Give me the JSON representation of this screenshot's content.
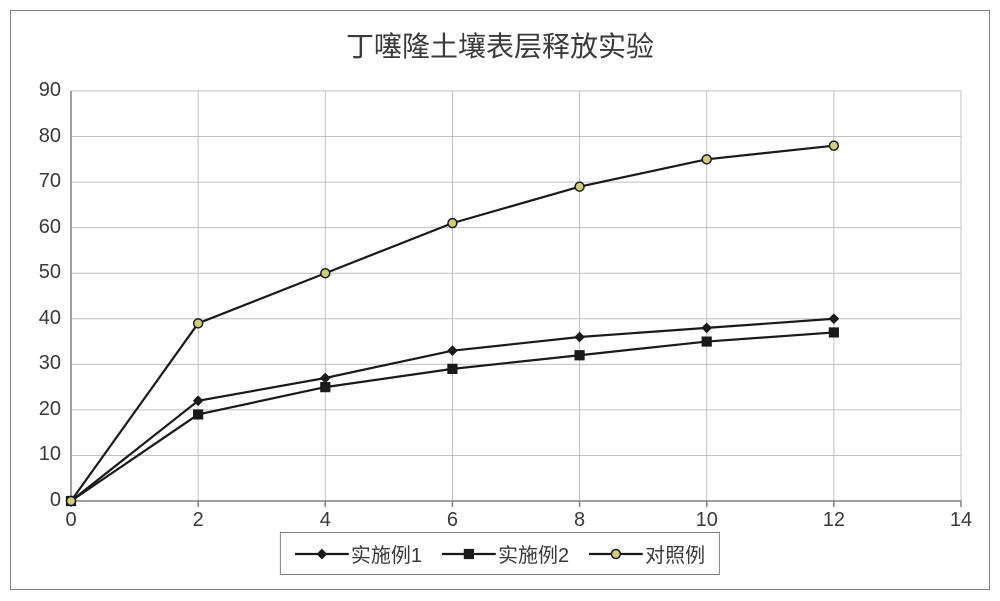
{
  "chart": {
    "type": "line",
    "title": "丁噻隆土壤表层释放实验",
    "title_fontsize": 28,
    "title_color": "#3a3a3a",
    "background_color": "#ffffff",
    "outer_border_color": "#808080",
    "plot_border_color": "#808080",
    "grid_color": "#c0c0c0",
    "grid_width": 1,
    "series_line_color": "#1a1a1a",
    "series_line_width": 2.2,
    "marker_edge_color": "#1a1a1a",
    "marker_size": 9,
    "x_axis": {
      "min": 0,
      "max": 14,
      "tick_step": 2,
      "ticks": [
        0,
        2,
        4,
        6,
        8,
        10,
        12,
        14
      ],
      "label_fontsize": 20,
      "label_color": "#3a3a3a"
    },
    "y_axis": {
      "min": 0,
      "max": 90,
      "tick_step": 10,
      "ticks": [
        0,
        10,
        20,
        30,
        40,
        50,
        60,
        70,
        80,
        90
      ],
      "label_fontsize": 20,
      "label_color": "#3a3a3a"
    },
    "series": [
      {
        "name": "实施例1",
        "marker": "diamond",
        "marker_fill": "#1a1a1a",
        "x": [
          0,
          2,
          4,
          6,
          8,
          10,
          12
        ],
        "y": [
          0,
          22,
          27,
          33,
          36,
          38,
          40
        ]
      },
      {
        "name": "实施例2",
        "marker": "square",
        "marker_fill": "#1a1a1a",
        "x": [
          0,
          2,
          4,
          6,
          8,
          10,
          12
        ],
        "y": [
          0,
          19,
          25,
          29,
          32,
          35,
          37
        ]
      },
      {
        "name": "对照例",
        "marker": "circle",
        "marker_fill": "#cfcf7a",
        "x": [
          0,
          2,
          4,
          6,
          8,
          10,
          12
        ],
        "y": [
          0,
          39,
          50,
          61,
          69,
          75,
          78
        ]
      }
    ],
    "legend": {
      "position": "bottom-center",
      "border_color": "#808080",
      "fontsize": 20,
      "label_color": "#3a3a3a"
    }
  }
}
